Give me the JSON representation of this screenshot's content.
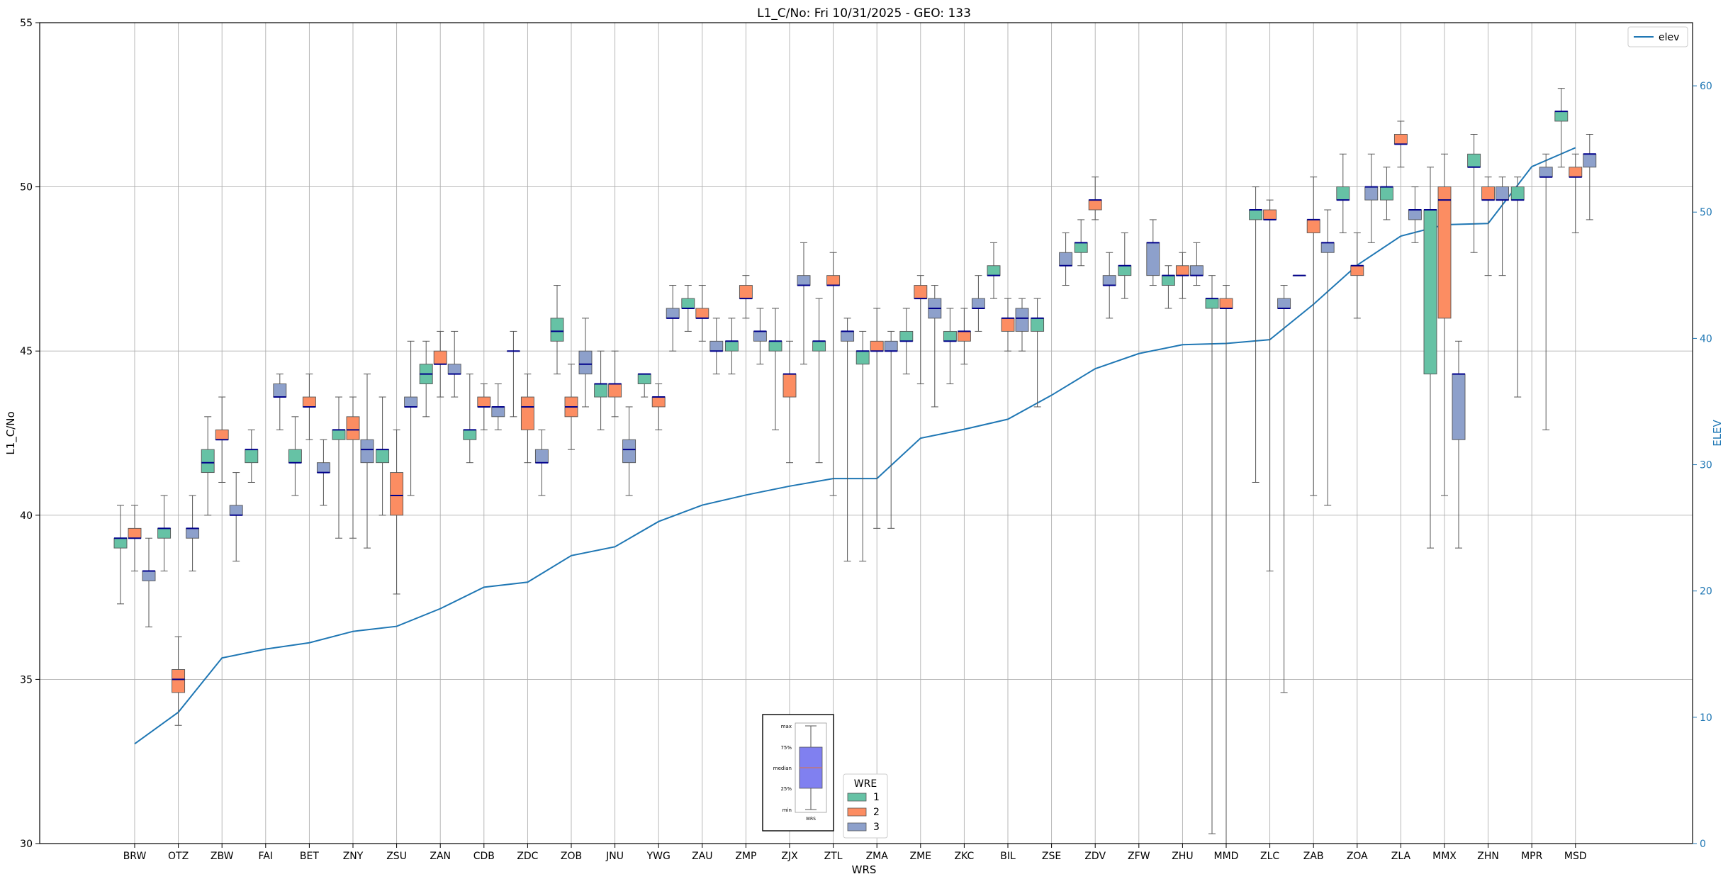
{
  "chart_data": {
    "type": "box",
    "title": "L1_C/No: Fri 10/31/2025 - GEO: 133",
    "xlabel": "WRS",
    "ylabel": "L1_C/No",
    "y2label": "ELEV",
    "ylim": [
      30,
      55
    ],
    "y2lim": [
      0,
      65
    ],
    "yticks": [
      30,
      35,
      40,
      45,
      50,
      55
    ],
    "y2ticks": [
      0,
      10,
      20,
      30,
      40,
      50,
      60
    ],
    "grid": true,
    "colors": {
      "wre1": "#66c2a5",
      "wre2": "#fc8d62",
      "wre3": "#8da0cb",
      "median": "#00008b",
      "elev": "#1f77b4",
      "whisker": "#555555"
    },
    "legend_line": {
      "label": "elev",
      "position": "top-right"
    },
    "legend_wre": {
      "title": "WRE",
      "entries": [
        "1",
        "2",
        "3"
      ]
    },
    "inset": {
      "labels": [
        "max",
        "75%",
        "median",
        "25%",
        "min"
      ],
      "xlabel": "WRS"
    },
    "categories": [
      "BRW",
      "OTZ",
      "ZBW",
      "FAI",
      "BET",
      "ZNY",
      "ZSU",
      "ZAN",
      "CDB",
      "ZDC",
      "ZOB",
      "JNU",
      "YWG",
      "ZAU",
      "ZMP",
      "ZJX",
      "ZTL",
      "ZMA",
      "ZME",
      "ZKC",
      "BIL",
      "ZSE",
      "ZDV",
      "ZFW",
      "ZHU",
      "MMD",
      "ZLC",
      "ZAB",
      "ZOA",
      "ZLA",
      "MMX",
      "ZHN",
      "MPR",
      "MSD"
    ],
    "elev": [
      7.9,
      10.4,
      14.7,
      15.4,
      15.9,
      16.8,
      17.2,
      18.6,
      20.3,
      20.7,
      22.8,
      23.5,
      25.5,
      26.8,
      27.6,
      28.3,
      28.9,
      28.9,
      32.1,
      32.8,
      33.6,
      35.5,
      37.6,
      38.8,
      39.5,
      39.6,
      39.9,
      42.7,
      45.8,
      48.1,
      49.0,
      49.1,
      53.6,
      55.1
    ],
    "series": [
      {
        "name": "1",
        "boxes": [
          {
            "cat": "BRW",
            "min": 37.3,
            "q1": 39.0,
            "median": 39.3,
            "q3": 39.3,
            "max": 40.3
          },
          {
            "cat": "OTZ",
            "min": 38.3,
            "q1": 39.3,
            "median": 39.6,
            "q3": 39.6,
            "max": 40.6
          },
          {
            "cat": "ZBW",
            "min": 40.0,
            "q1": 41.3,
            "median": 41.6,
            "q3": 42.0,
            "max": 43.0
          },
          {
            "cat": "FAI",
            "min": 41.0,
            "q1": 41.6,
            "median": 42.0,
            "q3": 42.0,
            "max": 42.6
          },
          {
            "cat": "BET",
            "min": 40.6,
            "q1": 41.6,
            "median": 41.6,
            "q3": 42.0,
            "max": 43.0
          },
          {
            "cat": "ZNY",
            "min": 39.3,
            "q1": 42.3,
            "median": 42.6,
            "q3": 42.6,
            "max": 43.6
          },
          {
            "cat": "ZSU",
            "min": 40.0,
            "q1": 41.6,
            "median": 42.0,
            "q3": 42.0,
            "max": 43.6
          },
          {
            "cat": "ZAN",
            "min": 43.0,
            "q1": 44.0,
            "median": 44.3,
            "q3": 44.6,
            "max": 45.3
          },
          {
            "cat": "CDB",
            "min": 41.6,
            "q1": 42.3,
            "median": 42.6,
            "q3": 42.6,
            "max": 44.3
          },
          {
            "cat": "ZDC",
            "min": 43.0,
            "q1": 45.0,
            "median": 45.0,
            "q3": 45.0,
            "max": 45.6
          },
          {
            "cat": "ZOB",
            "min": 44.3,
            "q1": 45.3,
            "median": 45.6,
            "q3": 46.0,
            "max": 47.0
          },
          {
            "cat": "JNU",
            "min": 42.6,
            "q1": 43.6,
            "median": 44.0,
            "q3": 44.0,
            "max": 45.0
          },
          {
            "cat": "YWG",
            "min": 43.6,
            "q1": 44.0,
            "median": 44.3,
            "q3": 44.3,
            "max": 44.3
          },
          {
            "cat": "ZAU",
            "min": 45.6,
            "q1": 46.3,
            "median": 46.3,
            "q3": 46.6,
            "max": 47.0
          },
          {
            "cat": "ZMP",
            "min": 44.3,
            "q1": 45.0,
            "median": 45.3,
            "q3": 45.3,
            "max": 46.0
          },
          {
            "cat": "ZJX",
            "min": 42.6,
            "q1": 45.0,
            "median": 45.3,
            "q3": 45.3,
            "max": 46.3
          },
          {
            "cat": "ZTL",
            "min": 41.6,
            "q1": 45.0,
            "median": 45.3,
            "q3": 45.3,
            "max": 46.6
          },
          {
            "cat": "ZMA",
            "min": 38.6,
            "q1": 44.6,
            "median": 45.0,
            "q3": 45.0,
            "max": 45.6
          },
          {
            "cat": "ZME",
            "min": 44.3,
            "q1": 45.3,
            "median": 45.3,
            "q3": 45.6,
            "max": 46.3
          },
          {
            "cat": "ZKC",
            "min": 44.0,
            "q1": 45.3,
            "median": 45.3,
            "q3": 45.6,
            "max": 46.3
          },
          {
            "cat": "BIL",
            "min": 46.6,
            "q1": 47.3,
            "median": 47.3,
            "q3": 47.6,
            "max": 48.3
          },
          {
            "cat": "ZSE",
            "min": 43.3,
            "q1": 45.6,
            "median": 46.0,
            "q3": 46.0,
            "max": 46.6
          },
          {
            "cat": "ZDV",
            "min": 47.6,
            "q1": 48.0,
            "median": 48.3,
            "q3": 48.3,
            "max": 49.0
          },
          {
            "cat": "ZFW",
            "min": 46.6,
            "q1": 47.3,
            "median": 47.6,
            "q3": 47.6,
            "max": 48.6
          },
          {
            "cat": "ZHU",
            "min": 46.3,
            "q1": 47.0,
            "median": 47.3,
            "q3": 47.3,
            "max": 47.6
          },
          {
            "cat": "MMD",
            "min": 30.3,
            "q1": 46.3,
            "median": 46.6,
            "q3": 46.6,
            "max": 47.3
          },
          {
            "cat": "ZLC",
            "min": 41.0,
            "q1": 49.0,
            "median": 49.3,
            "q3": 49.3,
            "max": 50.0
          },
          {
            "cat": "ZAB",
            "min": 47.3,
            "q1": 47.3,
            "median": 47.3,
            "q3": 47.3,
            "max": 47.3
          },
          {
            "cat": "ZOA",
            "min": 48.6,
            "q1": 49.6,
            "median": 49.6,
            "q3": 50.0,
            "max": 51.0
          },
          {
            "cat": "ZLA",
            "min": 49.0,
            "q1": 49.6,
            "median": 50.0,
            "q3": 50.0,
            "max": 50.6
          },
          {
            "cat": "MMX",
            "min": 39.0,
            "q1": 44.3,
            "median": 49.3,
            "q3": 49.3,
            "max": 50.6
          },
          {
            "cat": "ZHN",
            "min": 48.0,
            "q1": 50.6,
            "median": 50.6,
            "q3": 51.0,
            "max": 51.6
          },
          {
            "cat": "MPR",
            "min": 43.6,
            "q1": 49.6,
            "median": 49.6,
            "q3": 50.0,
            "max": 50.3
          },
          {
            "cat": "MSD",
            "min": 50.6,
            "q1": 52.0,
            "median": 52.3,
            "q3": 52.3,
            "max": 53.0
          }
        ]
      },
      {
        "name": "2",
        "boxes": [
          {
            "cat": "BRW",
            "min": 38.3,
            "q1": 39.3,
            "median": 39.3,
            "q3": 39.6,
            "max": 40.3
          },
          {
            "cat": "OTZ",
            "min": 33.6,
            "q1": 34.6,
            "median": 35.0,
            "q3": 35.3,
            "max": 36.3
          },
          {
            "cat": "ZBW",
            "min": 41.0,
            "q1": 42.3,
            "median": 42.3,
            "q3": 42.6,
            "max": 43.6
          },
          {
            "cat": "BET",
            "min": 42.3,
            "q1": 43.3,
            "median": 43.3,
            "q3": 43.6,
            "max": 44.3
          },
          {
            "cat": "ZNY",
            "min": 39.3,
            "q1": 42.3,
            "median": 42.6,
            "q3": 43.0,
            "max": 43.6
          },
          {
            "cat": "ZSU",
            "min": 37.6,
            "q1": 40.0,
            "median": 40.6,
            "q3": 41.3,
            "max": 42.6
          },
          {
            "cat": "ZAN",
            "min": 43.6,
            "q1": 44.6,
            "median": 44.6,
            "q3": 45.0,
            "max": 45.6
          },
          {
            "cat": "CDB",
            "min": 42.6,
            "q1": 43.3,
            "median": 43.3,
            "q3": 43.6,
            "max": 44.0
          },
          {
            "cat": "ZDC",
            "min": 41.6,
            "q1": 42.6,
            "median": 43.3,
            "q3": 43.6,
            "max": 44.3
          },
          {
            "cat": "ZOB",
            "min": 42.0,
            "q1": 43.0,
            "median": 43.3,
            "q3": 43.6,
            "max": 44.6
          },
          {
            "cat": "JNU",
            "min": 43.0,
            "q1": 43.6,
            "median": 44.0,
            "q3": 44.0,
            "max": 45.0
          },
          {
            "cat": "YWG",
            "min": 42.6,
            "q1": 43.3,
            "median": 43.6,
            "q3": 43.6,
            "max": 44.0
          },
          {
            "cat": "ZAU",
            "min": 45.3,
            "q1": 46.0,
            "median": 46.0,
            "q3": 46.3,
            "max": 47.0
          },
          {
            "cat": "ZMP",
            "min": 46.0,
            "q1": 46.6,
            "median": 46.6,
            "q3": 47.0,
            "max": 47.3
          },
          {
            "cat": "ZJX",
            "min": 41.6,
            "q1": 43.6,
            "median": 44.3,
            "q3": 44.3,
            "max": 45.3
          },
          {
            "cat": "ZTL",
            "min": 40.6,
            "q1": 47.0,
            "median": 47.0,
            "q3": 47.3,
            "max": 48.0
          },
          {
            "cat": "ZMA",
            "min": 39.6,
            "q1": 45.0,
            "median": 45.0,
            "q3": 45.3,
            "max": 46.3
          },
          {
            "cat": "ZME",
            "min": 44.0,
            "q1": 46.6,
            "median": 46.6,
            "q3": 47.0,
            "max": 47.3
          },
          {
            "cat": "ZKC",
            "min": 44.6,
            "q1": 45.3,
            "median": 45.6,
            "q3": 45.6,
            "max": 46.3
          },
          {
            "cat": "BIL",
            "min": 45.0,
            "q1": 45.6,
            "median": 46.0,
            "q3": 46.0,
            "max": 46.6
          },
          {
            "cat": "ZDV",
            "min": 49.0,
            "q1": 49.3,
            "median": 49.6,
            "q3": 49.6,
            "max": 50.3
          },
          {
            "cat": "ZHU",
            "min": 46.6,
            "q1": 47.3,
            "median": 47.3,
            "q3": 47.6,
            "max": 48.0
          },
          {
            "cat": "MMD",
            "min": 30.0,
            "q1": 46.3,
            "median": 46.3,
            "q3": 46.6,
            "max": 47.0
          },
          {
            "cat": "ZLC",
            "min": 38.3,
            "q1": 49.0,
            "median": 49.0,
            "q3": 49.3,
            "max": 49.6
          },
          {
            "cat": "ZAB",
            "min": 40.6,
            "q1": 48.6,
            "median": 49.0,
            "q3": 49.0,
            "max": 50.3
          },
          {
            "cat": "ZOA",
            "min": 46.0,
            "q1": 47.3,
            "median": 47.6,
            "q3": 47.6,
            "max": 48.6
          },
          {
            "cat": "ZLA",
            "min": 50.6,
            "q1": 51.3,
            "median": 51.3,
            "q3": 51.6,
            "max": 52.0
          },
          {
            "cat": "MMX",
            "min": 40.6,
            "q1": 46.0,
            "median": 49.6,
            "q3": 50.0,
            "max": 51.0
          },
          {
            "cat": "ZHN",
            "min": 47.3,
            "q1": 49.6,
            "median": 49.6,
            "q3": 50.0,
            "max": 50.3
          },
          {
            "cat": "MSD",
            "min": 48.6,
            "q1": 50.3,
            "median": 50.3,
            "q3": 50.6,
            "max": 51.0
          }
        ]
      },
      {
        "name": "3",
        "boxes": [
          {
            "cat": "BRW",
            "min": 36.6,
            "q1": 38.0,
            "median": 38.3,
            "q3": 38.3,
            "max": 39.3
          },
          {
            "cat": "OTZ",
            "min": 38.3,
            "q1": 39.3,
            "median": 39.6,
            "q3": 39.6,
            "max": 40.6
          },
          {
            "cat": "ZBW",
            "min": 38.6,
            "q1": 40.0,
            "median": 40.0,
            "q3": 40.3,
            "max": 41.3
          },
          {
            "cat": "FAI",
            "min": 42.6,
            "q1": 43.6,
            "median": 43.6,
            "q3": 44.0,
            "max": 44.3
          },
          {
            "cat": "BET",
            "min": 40.3,
            "q1": 41.3,
            "median": 41.3,
            "q3": 41.6,
            "max": 42.3
          },
          {
            "cat": "ZNY",
            "min": 39.0,
            "q1": 41.6,
            "median": 42.0,
            "q3": 42.3,
            "max": 44.3
          },
          {
            "cat": "ZSU",
            "min": 40.6,
            "q1": 43.3,
            "median": 43.3,
            "q3": 43.6,
            "max": 45.3
          },
          {
            "cat": "ZAN",
            "min": 43.6,
            "q1": 44.3,
            "median": 44.3,
            "q3": 44.6,
            "max": 45.6
          },
          {
            "cat": "CDB",
            "min": 42.6,
            "q1": 43.0,
            "median": 43.3,
            "q3": 43.3,
            "max": 44.0
          },
          {
            "cat": "ZDC",
            "min": 40.6,
            "q1": 41.6,
            "median": 41.6,
            "q3": 42.0,
            "max": 42.6
          },
          {
            "cat": "ZOB",
            "min": 43.3,
            "q1": 44.3,
            "median": 44.6,
            "q3": 45.0,
            "max": 46.0
          },
          {
            "cat": "JNU",
            "min": 40.6,
            "q1": 41.6,
            "median": 42.0,
            "q3": 42.3,
            "max": 43.3
          },
          {
            "cat": "YWG",
            "min": 45.0,
            "q1": 46.0,
            "median": 46.0,
            "q3": 46.3,
            "max": 47.0
          },
          {
            "cat": "ZAU",
            "min": 44.3,
            "q1": 45.0,
            "median": 45.0,
            "q3": 45.3,
            "max": 46.0
          },
          {
            "cat": "ZMP",
            "min": 44.6,
            "q1": 45.3,
            "median": 45.6,
            "q3": 45.6,
            "max": 46.3
          },
          {
            "cat": "ZJX",
            "min": 44.6,
            "q1": 47.0,
            "median": 47.0,
            "q3": 47.3,
            "max": 48.3
          },
          {
            "cat": "ZTL",
            "min": 38.6,
            "q1": 45.3,
            "median": 45.6,
            "q3": 45.6,
            "max": 46.0
          },
          {
            "cat": "ZMA",
            "min": 39.6,
            "q1": 45.0,
            "median": 45.0,
            "q3": 45.3,
            "max": 45.6
          },
          {
            "cat": "ZME",
            "min": 43.3,
            "q1": 46.0,
            "median": 46.3,
            "q3": 46.6,
            "max": 47.0
          },
          {
            "cat": "ZKC",
            "min": 45.6,
            "q1": 46.3,
            "median": 46.3,
            "q3": 46.6,
            "max": 47.3
          },
          {
            "cat": "BIL",
            "min": 45.0,
            "q1": 45.6,
            "median": 46.0,
            "q3": 46.3,
            "max": 46.6
          },
          {
            "cat": "ZSE",
            "min": 47.0,
            "q1": 47.6,
            "median": 47.6,
            "q3": 48.0,
            "max": 48.6
          },
          {
            "cat": "ZDV",
            "min": 46.0,
            "q1": 47.0,
            "median": 47.0,
            "q3": 47.3,
            "max": 48.0
          },
          {
            "cat": "ZFW",
            "min": 47.0,
            "q1": 47.3,
            "median": 48.3,
            "q3": 48.3,
            "max": 49.0
          },
          {
            "cat": "ZHU",
            "min": 47.0,
            "q1": 47.3,
            "median": 47.3,
            "q3": 47.6,
            "max": 48.3
          },
          {
            "cat": "ZLC",
            "min": 34.6,
            "q1": 46.3,
            "median": 46.3,
            "q3": 46.6,
            "max": 47.0
          },
          {
            "cat": "ZAB",
            "min": 40.3,
            "q1": 48.0,
            "median": 48.3,
            "q3": 48.3,
            "max": 49.3
          },
          {
            "cat": "ZOA",
            "min": 48.3,
            "q1": 49.6,
            "median": 50.0,
            "q3": 50.0,
            "max": 51.0
          },
          {
            "cat": "ZLA",
            "min": 48.3,
            "q1": 49.0,
            "median": 49.3,
            "q3": 49.3,
            "max": 50.0
          },
          {
            "cat": "MMX",
            "min": 39.0,
            "q1": 42.3,
            "median": 44.3,
            "q3": 44.3,
            "max": 45.3
          },
          {
            "cat": "ZHN",
            "min": 47.3,
            "q1": 49.6,
            "median": 49.6,
            "q3": 50.0,
            "max": 50.3
          },
          {
            "cat": "MPR",
            "min": 42.6,
            "q1": 50.3,
            "median": 50.3,
            "q3": 50.6,
            "max": 51.0
          },
          {
            "cat": "MSD",
            "min": 49.0,
            "q1": 50.6,
            "median": 51.0,
            "q3": 51.0,
            "max": 51.6
          }
        ]
      }
    ]
  }
}
